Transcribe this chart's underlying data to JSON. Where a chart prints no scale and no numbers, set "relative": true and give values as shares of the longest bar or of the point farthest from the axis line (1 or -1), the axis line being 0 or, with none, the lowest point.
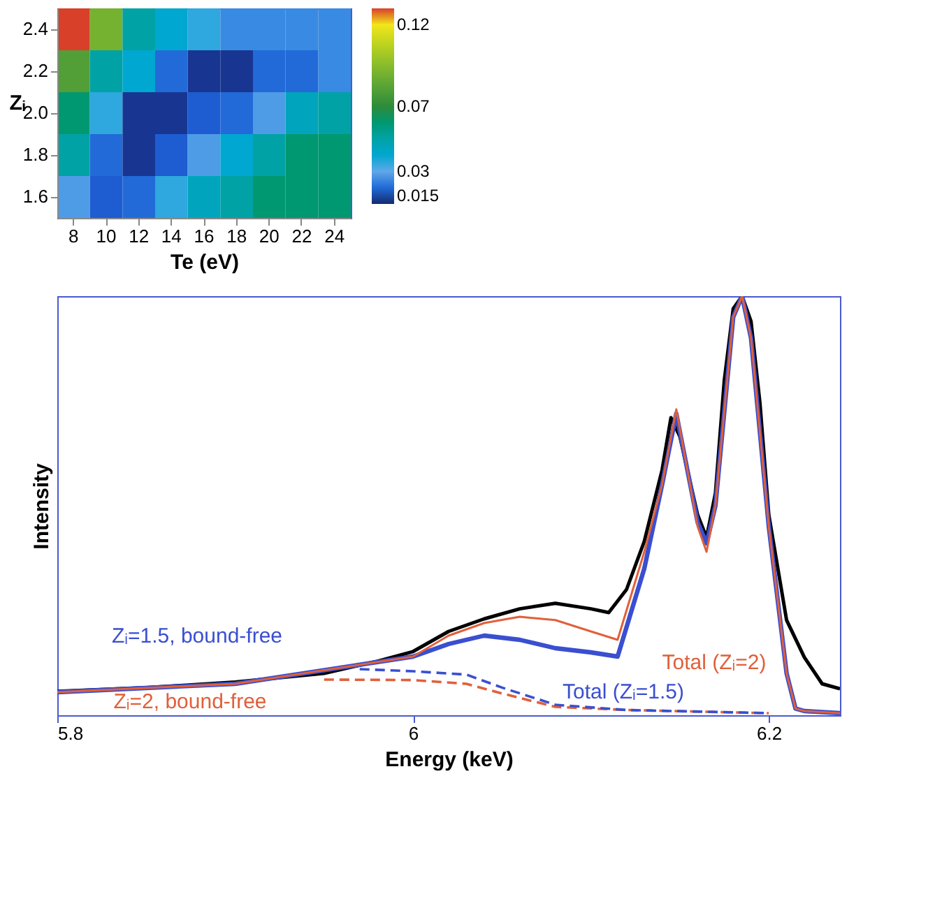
{
  "chart_data": [
    {
      "type": "heatmap",
      "xlabel": "Te (eV)",
      "ylabel": "Zᵢ",
      "categories": [
        "8",
        "10",
        "12",
        "14",
        "16",
        "18",
        "20",
        "22",
        "24"
      ],
      "y_categories": [
        "2.4",
        "2.2",
        "2.0",
        "1.8",
        "1.6"
      ],
      "cells": [
        [
          0.13,
          0.09,
          0.05,
          0.04,
          0.035,
          0.025,
          0.025,
          0.025,
          0.025
        ],
        [
          0.08,
          0.05,
          0.04,
          0.02,
          0.012,
          0.012,
          0.02,
          0.02,
          0.025
        ],
        [
          0.06,
          0.035,
          0.012,
          0.012,
          0.018,
          0.02,
          0.028,
          0.045,
          0.05
        ],
        [
          0.05,
          0.02,
          0.012,
          0.018,
          0.028,
          0.04,
          0.05,
          0.06,
          0.06
        ],
        [
          0.028,
          0.018,
          0.02,
          0.035,
          0.045,
          0.05,
          0.06,
          0.06,
          0.06
        ]
      ],
      "clim": [
        0.01,
        0.13
      ],
      "cticks": [
        0.015,
        0.03,
        0.07,
        0.12
      ]
    },
    {
      "type": "line",
      "xlabel": "Energy (keV)",
      "ylabel": "Intensity",
      "relative": true,
      "xlim": [
        5.8,
        6.24
      ],
      "xticks": [
        5.8,
        6,
        6.2
      ],
      "grid": false,
      "series": [
        {
          "color": "#000000",
          "line_style": "solid",
          "x": [
            5.8,
            5.85,
            5.9,
            5.95,
            5.98,
            6.0,
            6.02,
            6.04,
            6.06,
            6.08,
            6.1,
            6.11,
            6.12,
            6.13,
            6.14,
            6.145,
            6.15,
            6.16,
            6.165,
            6.17,
            6.175,
            6.18,
            6.185,
            6.19,
            6.195,
            6.2,
            6.21,
            6.22,
            6.23,
            6.24
          ],
          "values": [
            0.057,
            0.066,
            0.079,
            0.1,
            0.129,
            0.152,
            0.2,
            0.23,
            0.254,
            0.267,
            0.254,
            0.245,
            0.3,
            0.415,
            0.585,
            0.71,
            0.665,
            0.478,
            0.424,
            0.53,
            0.8,
            0.97,
            1.0,
            0.94,
            0.746,
            0.478,
            0.227,
            0.138,
            0.075,
            0.063
          ]
        },
        {
          "color": "#e0603a",
          "line_style": "solid",
          "x": [
            5.8,
            5.9,
            6.0,
            6.02,
            6.04,
            6.06,
            6.08,
            6.1,
            6.115,
            6.13,
            6.14,
            6.148,
            6.16,
            6.165,
            6.17,
            6.18,
            6.185,
            6.19,
            6.2,
            6.21,
            6.215,
            6.22,
            6.24
          ],
          "values": [
            0.055,
            0.075,
            0.14,
            0.19,
            0.22,
            0.235,
            0.227,
            0.2,
            0.18,
            0.39,
            0.55,
            0.73,
            0.45,
            0.39,
            0.5,
            0.95,
            1.0,
            0.9,
            0.45,
            0.1,
            0.016,
            0.01,
            0.005
          ]
        },
        {
          "color": "#3a4fd0",
          "line_style": "solid",
          "x": [
            5.8,
            5.9,
            6.0,
            6.02,
            6.04,
            6.06,
            6.08,
            6.1,
            6.115,
            6.13,
            6.14,
            6.148,
            6.16,
            6.165,
            6.17,
            6.18,
            6.185,
            6.19,
            6.2,
            6.21,
            6.215,
            6.22,
            6.24
          ],
          "values": [
            0.055,
            0.075,
            0.14,
            0.17,
            0.19,
            0.18,
            0.16,
            0.15,
            0.14,
            0.35,
            0.55,
            0.72,
            0.46,
            0.41,
            0.5,
            0.95,
            1.0,
            0.9,
            0.45,
            0.1,
            0.016,
            0.01,
            0.005
          ]
        },
        {
          "color": "#3a4fd0",
          "line_style": "dashed",
          "x": [
            5.97,
            6.0,
            6.03,
            6.05,
            6.08,
            6.12,
            6.2
          ],
          "values": [
            0.11,
            0.105,
            0.097,
            0.066,
            0.025,
            0.0125,
            0.005
          ]
        },
        {
          "color": "#e0603a",
          "line_style": "dashed",
          "x": [
            5.95,
            6.0,
            6.03,
            6.05,
            6.08,
            6.12,
            6.2
          ],
          "values": [
            0.085,
            0.084,
            0.075,
            0.052,
            0.02,
            0.0125,
            0.005
          ]
        }
      ],
      "annotations": [
        "Zᵢ=1.5, bound-free",
        "Zᵢ=2, bound-free",
        "Total (Zᵢ=2)",
        "Total (Zᵢ=1.5)"
      ]
    }
  ]
}
